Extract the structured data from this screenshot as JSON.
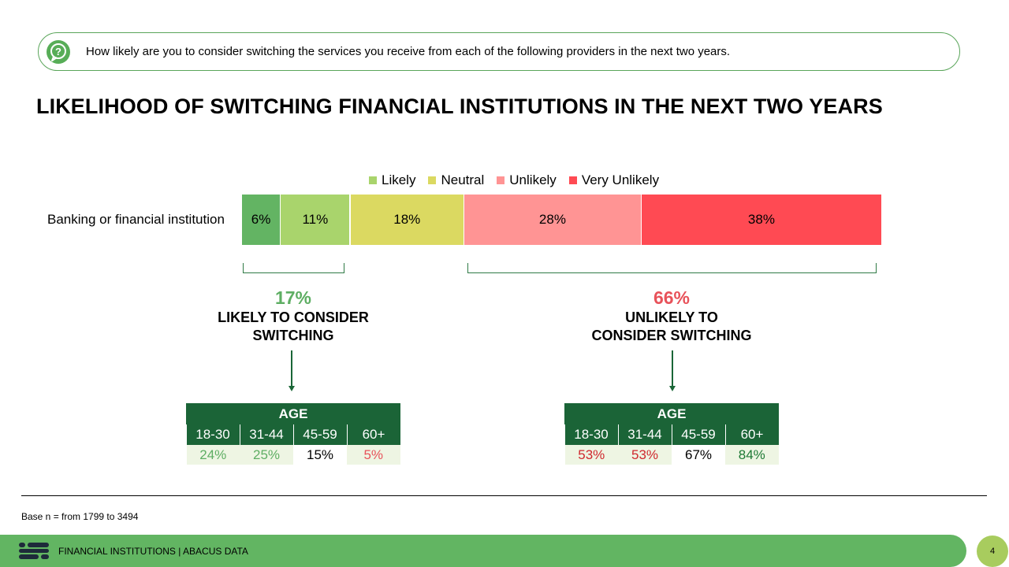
{
  "question": {
    "icon": "question-bubble-icon",
    "text": "How likely are you to consider switching the services you receive from each of the following providers in the next two years."
  },
  "chart_data": {
    "type": "bar",
    "orientation": "horizontal",
    "stacked": true,
    "title": "LIKELIHOOD OF SWITCHING FINANCIAL INSTITUTIONS IN THE NEXT TWO YEARS",
    "categories": [
      "Banking or financial institution"
    ],
    "xlim": [
      0,
      101
    ],
    "legend_position": "top",
    "series": [
      {
        "name": "",
        "values": [
          6
        ],
        "label": "6%",
        "color": "#63b463"
      },
      {
        "name": "Likely",
        "values": [
          11
        ],
        "label": "11%",
        "color": "#a9d46c"
      },
      {
        "name": "Neutral",
        "values": [
          18
        ],
        "label": "18%",
        "color": "#dbd961"
      },
      {
        "name": "Unlikely",
        "values": [
          28
        ],
        "label": "28%",
        "color": "#ff9494"
      },
      {
        "name": "Very Unlikely",
        "values": [
          38
        ],
        "label": "38%",
        "color": "#ff4a53"
      }
    ]
  },
  "likely": {
    "percent": "17%",
    "caption": "LIKELY TO CONSIDER\nSWITCHING",
    "color": "#5eae63",
    "table": {
      "header": "AGE",
      "groups": [
        "18-30",
        "31-44",
        "45-59",
        "60+"
      ],
      "values": [
        "24%",
        "25%",
        "15%",
        "5%"
      ],
      "value_colors": [
        "#5eae63",
        "#5eae63",
        "#000000",
        "#e8525a"
      ],
      "value_backgrounds": [
        "#eef5e3",
        "#eef5e3",
        "#ffffff",
        "#eef5e3"
      ]
    }
  },
  "unlikely": {
    "percent": "66%",
    "caption": "UNLIKELY TO\nCONSIDER SWITCHING",
    "color": "#e8525a",
    "table": {
      "header": "AGE",
      "groups": [
        "18-30",
        "31-44",
        "45-59",
        "60+"
      ],
      "values": [
        "53%",
        "53%",
        "67%",
        "84%"
      ],
      "value_colors": [
        "#d0282e",
        "#d0282e",
        "#000000",
        "#1e7a35"
      ],
      "value_backgrounds": [
        "#eef5e3",
        "#eef5e3",
        "#ffffff",
        "#eef5e3"
      ]
    }
  },
  "base_note": "Base n = from 1799 to 3494",
  "footer": {
    "logo": "abacus-logo-icon",
    "text": "FINANCIAL INSTITUTIONS  |  ABACUS DATA",
    "page_number": "4"
  }
}
